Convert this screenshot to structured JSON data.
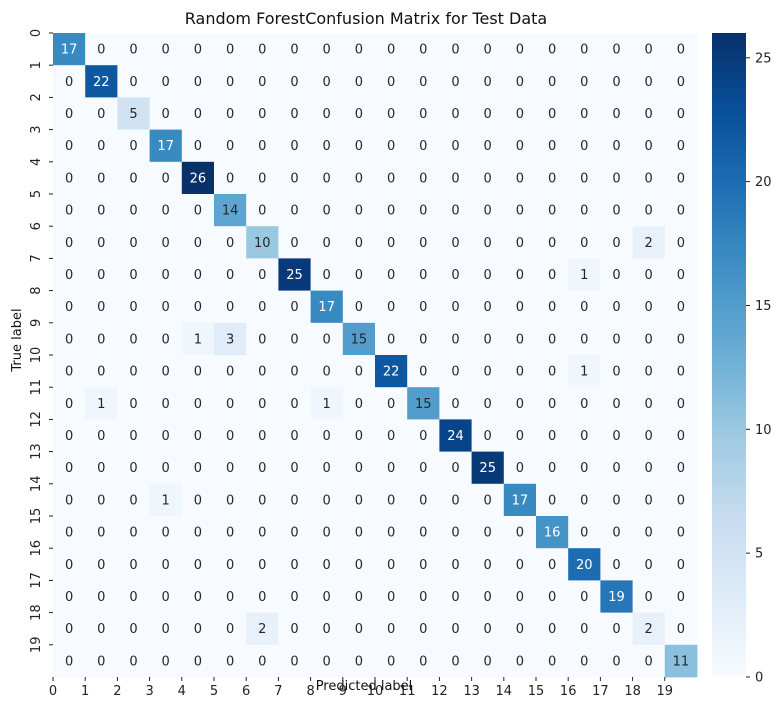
{
  "chart_data": {
    "type": "heatmap",
    "title": "Random ForestConfusion Matrix for Test Data",
    "xlabel": "Predicted label",
    "ylabel": "True label",
    "x_tick_labels": [
      "0",
      "1",
      "2",
      "3",
      "4",
      "5",
      "6",
      "7",
      "8",
      "9",
      "10",
      "11",
      "12",
      "13",
      "14",
      "15",
      "16",
      "17",
      "18",
      "19"
    ],
    "y_tick_labels": [
      "0",
      "1",
      "2",
      "3",
      "4",
      "5",
      "6",
      "7",
      "8",
      "9",
      "10",
      "11",
      "12",
      "13",
      "14",
      "15",
      "16",
      "17",
      "18",
      "19"
    ],
    "matrix": [
      [
        17,
        0,
        0,
        0,
        0,
        0,
        0,
        0,
        0,
        0,
        0,
        0,
        0,
        0,
        0,
        0,
        0,
        0,
        0,
        0
      ],
      [
        0,
        22,
        0,
        0,
        0,
        0,
        0,
        0,
        0,
        0,
        0,
        0,
        0,
        0,
        0,
        0,
        0,
        0,
        0,
        0
      ],
      [
        0,
        0,
        5,
        0,
        0,
        0,
        0,
        0,
        0,
        0,
        0,
        0,
        0,
        0,
        0,
        0,
        0,
        0,
        0,
        0
      ],
      [
        0,
        0,
        0,
        17,
        0,
        0,
        0,
        0,
        0,
        0,
        0,
        0,
        0,
        0,
        0,
        0,
        0,
        0,
        0,
        0
      ],
      [
        0,
        0,
        0,
        0,
        26,
        0,
        0,
        0,
        0,
        0,
        0,
        0,
        0,
        0,
        0,
        0,
        0,
        0,
        0,
        0
      ],
      [
        0,
        0,
        0,
        0,
        0,
        14,
        0,
        0,
        0,
        0,
        0,
        0,
        0,
        0,
        0,
        0,
        0,
        0,
        0,
        0
      ],
      [
        0,
        0,
        0,
        0,
        0,
        0,
        10,
        0,
        0,
        0,
        0,
        0,
        0,
        0,
        0,
        0,
        0,
        0,
        2,
        0
      ],
      [
        0,
        0,
        0,
        0,
        0,
        0,
        0,
        25,
        0,
        0,
        0,
        0,
        0,
        0,
        0,
        0,
        1,
        0,
        0,
        0
      ],
      [
        0,
        0,
        0,
        0,
        0,
        0,
        0,
        0,
        17,
        0,
        0,
        0,
        0,
        0,
        0,
        0,
        0,
        0,
        0,
        0
      ],
      [
        0,
        0,
        0,
        0,
        1,
        3,
        0,
        0,
        0,
        15,
        0,
        0,
        0,
        0,
        0,
        0,
        0,
        0,
        0,
        0
      ],
      [
        0,
        0,
        0,
        0,
        0,
        0,
        0,
        0,
        0,
        0,
        22,
        0,
        0,
        0,
        0,
        0,
        1,
        0,
        0,
        0
      ],
      [
        0,
        1,
        0,
        0,
        0,
        0,
        0,
        0,
        1,
        0,
        0,
        15,
        0,
        0,
        0,
        0,
        0,
        0,
        0,
        0
      ],
      [
        0,
        0,
        0,
        0,
        0,
        0,
        0,
        0,
        0,
        0,
        0,
        0,
        24,
        0,
        0,
        0,
        0,
        0,
        0,
        0
      ],
      [
        0,
        0,
        0,
        0,
        0,
        0,
        0,
        0,
        0,
        0,
        0,
        0,
        0,
        25,
        0,
        0,
        0,
        0,
        0,
        0
      ],
      [
        0,
        0,
        0,
        1,
        0,
        0,
        0,
        0,
        0,
        0,
        0,
        0,
        0,
        0,
        17,
        0,
        0,
        0,
        0,
        0
      ],
      [
        0,
        0,
        0,
        0,
        0,
        0,
        0,
        0,
        0,
        0,
        0,
        0,
        0,
        0,
        0,
        16,
        0,
        0,
        0,
        0
      ],
      [
        0,
        0,
        0,
        0,
        0,
        0,
        0,
        0,
        0,
        0,
        0,
        0,
        0,
        0,
        0,
        0,
        20,
        0,
        0,
        0
      ],
      [
        0,
        0,
        0,
        0,
        0,
        0,
        0,
        0,
        0,
        0,
        0,
        0,
        0,
        0,
        0,
        0,
        0,
        19,
        0,
        0
      ],
      [
        0,
        0,
        0,
        0,
        0,
        0,
        2,
        0,
        0,
        0,
        0,
        0,
        0,
        0,
        0,
        0,
        0,
        0,
        2,
        0
      ],
      [
        0,
        0,
        0,
        0,
        0,
        0,
        0,
        0,
        0,
        0,
        0,
        0,
        0,
        0,
        0,
        0,
        0,
        0,
        0,
        11
      ]
    ],
    "colorbar": {
      "colormap": "Blues",
      "range": [
        0,
        26
      ],
      "ticks": [
        0,
        5,
        10,
        15,
        20,
        25
      ],
      "low_color": "#f7fbff",
      "high_color": "#08306b"
    },
    "grid": false
  }
}
